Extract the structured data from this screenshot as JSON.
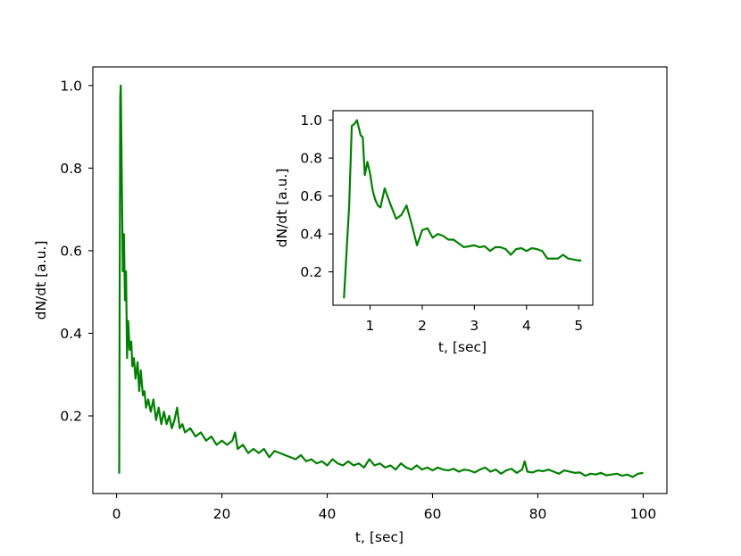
{
  "chart_data": [
    {
      "type": "line",
      "panel": "main",
      "xlabel": "t, [sec]",
      "ylabel": "dN/dt [a.u.]",
      "xlim": [
        -4.5,
        104.5
      ],
      "ylim": [
        0.012,
        1.045
      ],
      "xticks": [
        0,
        20,
        40,
        60,
        80,
        100
      ],
      "yticks": [
        0.2,
        0.4,
        0.6,
        0.8,
        1.0
      ],
      "xtick_labels": [
        "0",
        "20",
        "40",
        "60",
        "80",
        "100"
      ],
      "ytick_labels": [
        "0.2",
        "0.4",
        "0.6",
        "0.8",
        "1.0"
      ],
      "grid": false,
      "series": [
        {
          "color": "#008000",
          "x": [
            0.5,
            0.7,
            0.8,
            1.0,
            1.2,
            1.4,
            1.6,
            1.8,
            2.0,
            2.2,
            2.5,
            2.8,
            3.0,
            3.3,
            3.6,
            4.0,
            4.3,
            4.6,
            5.0,
            5.3,
            5.6,
            6.0,
            6.5,
            7.0,
            7.5,
            8.0,
            8.5,
            9.0,
            9.5,
            10.0,
            10.5,
            11.0,
            11.5,
            12.0,
            12.5,
            13.0,
            14.0,
            15.0,
            16.0,
            17.0,
            18.0,
            19.0,
            20.0,
            21.0,
            22.0,
            22.5,
            23.0,
            24.0,
            25.0,
            26.0,
            27.0,
            28.0,
            29.0,
            30.0,
            31.0,
            32.0,
            33.0,
            34.0,
            35.0,
            36.0,
            37.0,
            38.0,
            39.0,
            40.0,
            41.0,
            42.0,
            43.0,
            44.0,
            45.0,
            46.0,
            47.0,
            48.0,
            49.0,
            50.0,
            51.0,
            52.0,
            53.0,
            54.0,
            55.0,
            56.0,
            57.0,
            58.0,
            59.0,
            60.0,
            61.0,
            62.0,
            63.0,
            64.0,
            65.0,
            66.0,
            67.0,
            68.0,
            69.0,
            70.0,
            71.0,
            72.0,
            73.0,
            74.0,
            75.0,
            76.0,
            77.0,
            77.5,
            78.0,
            79.0,
            80.0,
            81.0,
            82.0,
            83.0,
            84.0,
            85.0,
            86.0,
            87.0,
            88.0,
            89.0,
            90.0,
            91.0,
            92.0,
            93.0,
            94.0,
            95.0,
            96.0,
            97.0,
            98.0,
            99.0,
            100.0
          ],
          "y": [
            0.06,
            0.97,
            1.0,
            0.77,
            0.55,
            0.64,
            0.48,
            0.55,
            0.34,
            0.43,
            0.36,
            0.38,
            0.32,
            0.34,
            0.29,
            0.33,
            0.26,
            0.31,
            0.25,
            0.26,
            0.22,
            0.24,
            0.21,
            0.24,
            0.19,
            0.22,
            0.18,
            0.21,
            0.18,
            0.2,
            0.17,
            0.19,
            0.22,
            0.17,
            0.18,
            0.16,
            0.17,
            0.15,
            0.16,
            0.14,
            0.15,
            0.13,
            0.14,
            0.13,
            0.14,
            0.16,
            0.12,
            0.13,
            0.11,
            0.12,
            0.11,
            0.12,
            0.1,
            0.115,
            0.11,
            0.105,
            0.1,
            0.095,
            0.105,
            0.09,
            0.095,
            0.085,
            0.09,
            0.08,
            0.095,
            0.085,
            0.08,
            0.09,
            0.08,
            0.085,
            0.075,
            0.095,
            0.08,
            0.085,
            0.075,
            0.08,
            0.07,
            0.085,
            0.075,
            0.07,
            0.08,
            0.07,
            0.075,
            0.068,
            0.075,
            0.07,
            0.068,
            0.072,
            0.065,
            0.07,
            0.068,
            0.063,
            0.07,
            0.075,
            0.065,
            0.07,
            0.06,
            0.068,
            0.072,
            0.062,
            0.07,
            0.09,
            0.065,
            0.063,
            0.068,
            0.066,
            0.07,
            0.065,
            0.06,
            0.068,
            0.065,
            0.062,
            0.063,
            0.055,
            0.06,
            0.058,
            0.062,
            0.056,
            0.058,
            0.06,
            0.055,
            0.058,
            0.052,
            0.06,
            0.062
          ]
        }
      ]
    },
    {
      "type": "line",
      "panel": "inset",
      "xlabel": "t, [sec]",
      "ylabel": "dN/dt [a.u.]",
      "xlim": [
        0.29,
        5.27
      ],
      "ylim": [
        0.024,
        1.05
      ],
      "xticks": [
        1,
        2,
        3,
        4,
        5
      ],
      "yticks": [
        0.2,
        0.4,
        0.6,
        0.8,
        1.0
      ],
      "xtick_labels": [
        "1",
        "2",
        "3",
        "4",
        "5"
      ],
      "ytick_labels": [
        "0.2",
        "0.4",
        "0.6",
        "0.8",
        "1.0"
      ],
      "grid": false,
      "series": [
        {
          "color": "#008000",
          "x": [
            0.5,
            0.6,
            0.65,
            0.7,
            0.75,
            0.82,
            0.86,
            0.9,
            0.95,
            1.0,
            1.05,
            1.1,
            1.15,
            1.2,
            1.28,
            1.4,
            1.5,
            1.6,
            1.7,
            1.8,
            1.9,
            1.95,
            2.0,
            2.1,
            2.2,
            2.3,
            2.4,
            2.5,
            2.6,
            2.7,
            2.8,
            3.0,
            3.1,
            3.2,
            3.3,
            3.4,
            3.5,
            3.6,
            3.7,
            3.8,
            3.9,
            4.0,
            4.1,
            4.2,
            4.3,
            4.4,
            4.5,
            4.6,
            4.7,
            4.8,
            4.9,
            5.0,
            5.05
          ],
          "y": [
            0.06,
            0.55,
            0.97,
            0.98,
            1.0,
            0.92,
            0.91,
            0.71,
            0.78,
            0.72,
            0.63,
            0.58,
            0.55,
            0.54,
            0.64,
            0.55,
            0.48,
            0.5,
            0.55,
            0.45,
            0.34,
            0.38,
            0.42,
            0.43,
            0.38,
            0.4,
            0.39,
            0.37,
            0.37,
            0.35,
            0.33,
            0.34,
            0.33,
            0.335,
            0.31,
            0.33,
            0.33,
            0.32,
            0.29,
            0.32,
            0.325,
            0.31,
            0.325,
            0.32,
            0.31,
            0.27,
            0.27,
            0.27,
            0.29,
            0.27,
            0.265,
            0.26,
            0.26
          ]
        }
      ]
    }
  ]
}
